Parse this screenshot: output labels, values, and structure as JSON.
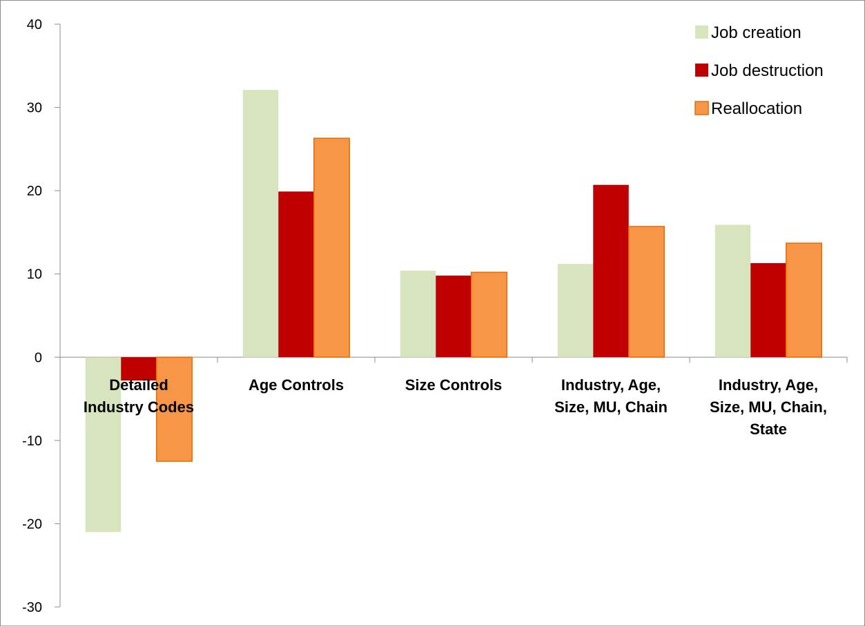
{
  "chart_data": {
    "type": "bar",
    "categories": [
      [
        "Detailed",
        "Industry Codes"
      ],
      [
        "Age Controls"
      ],
      [
        "Size Controls"
      ],
      [
        "Industry, Age,",
        "Size, MU, Chain"
      ],
      [
        "Industry, Age,",
        "Size, MU, Chain,",
        "State"
      ]
    ],
    "series": [
      {
        "name": "Job creation",
        "color": "#d7e4bd",
        "values": [
          -21.0,
          32.1,
          10.4,
          11.2,
          15.9
        ]
      },
      {
        "name": "Job destruction",
        "color": "#c00000",
        "values": [
          -2.8,
          19.9,
          9.8,
          20.7,
          11.3
        ]
      },
      {
        "name": "Reallocation",
        "color": "#f79646",
        "edge": "#e46c0a",
        "values": [
          -12.5,
          26.3,
          10.2,
          15.7,
          13.7
        ]
      }
    ],
    "ylim": [
      -30,
      40
    ],
    "yticks": [
      -30,
      -20,
      -10,
      0,
      10,
      20,
      30,
      40
    ],
    "legend": "top-right",
    "grid": false
  }
}
